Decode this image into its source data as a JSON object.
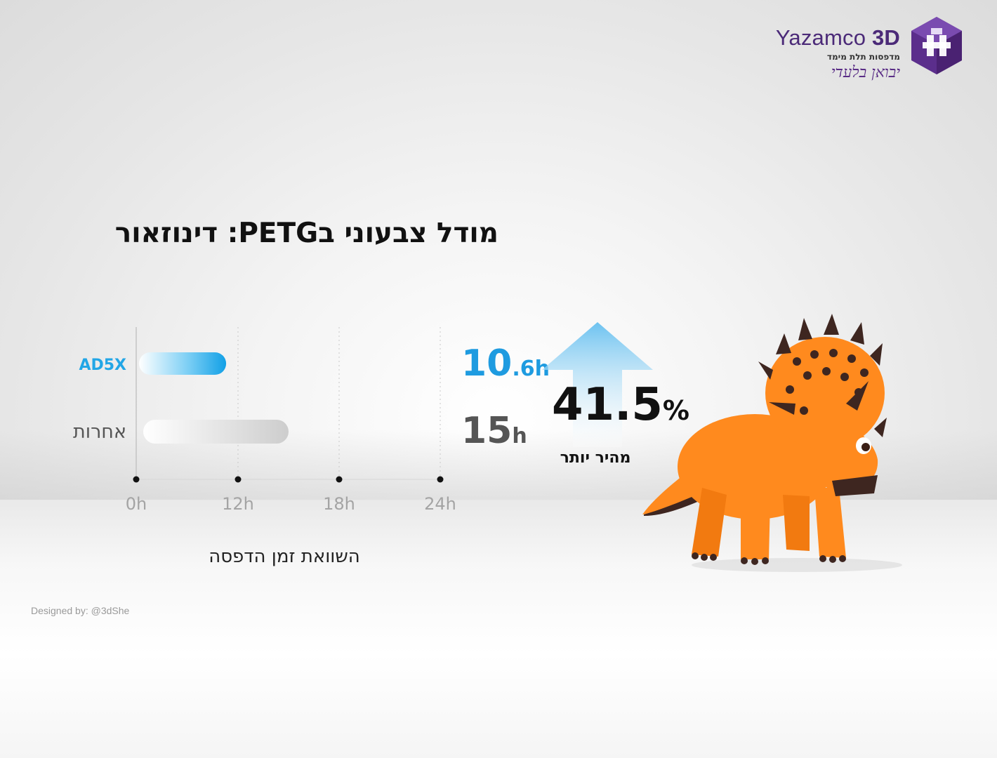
{
  "brand": {
    "name": "Yazamco",
    "name_bold": "3D",
    "tagline": "מדפסות תלת מימד",
    "script": "יבואן בלעדי"
  },
  "title": "מודל צבעוני בPETG: דינוזאור",
  "chart_data": {
    "type": "bar",
    "orientation": "horizontal",
    "categories": [
      "AD5X",
      "אחרות"
    ],
    "values": [
      10.6,
      15
    ],
    "unit": "h",
    "xlim": [
      0,
      24
    ],
    "x_ticks": [
      "0h",
      "12h",
      "18h",
      "24h"
    ],
    "grid": true,
    "value_labels": [
      {
        "main": "10",
        "small": ".6h"
      },
      {
        "main": "15",
        "small": "h"
      }
    ],
    "colors": {
      "AD5X": "#1e9be0",
      "אחרות": "#cfcfcf"
    }
  },
  "summary": {
    "percent_main": "41.5",
    "percent_sign": "%",
    "label": "מהיר יותר",
    "arrow_color": "#7ec8f2"
  },
  "caption": "השוואת זמן הדפסה",
  "credit": "Designed by: @3dShe",
  "image": {
    "subject": "orange 3D printed triceratops dinosaur model",
    "colors": [
      "#ff8a1e",
      "#3e2620"
    ]
  }
}
